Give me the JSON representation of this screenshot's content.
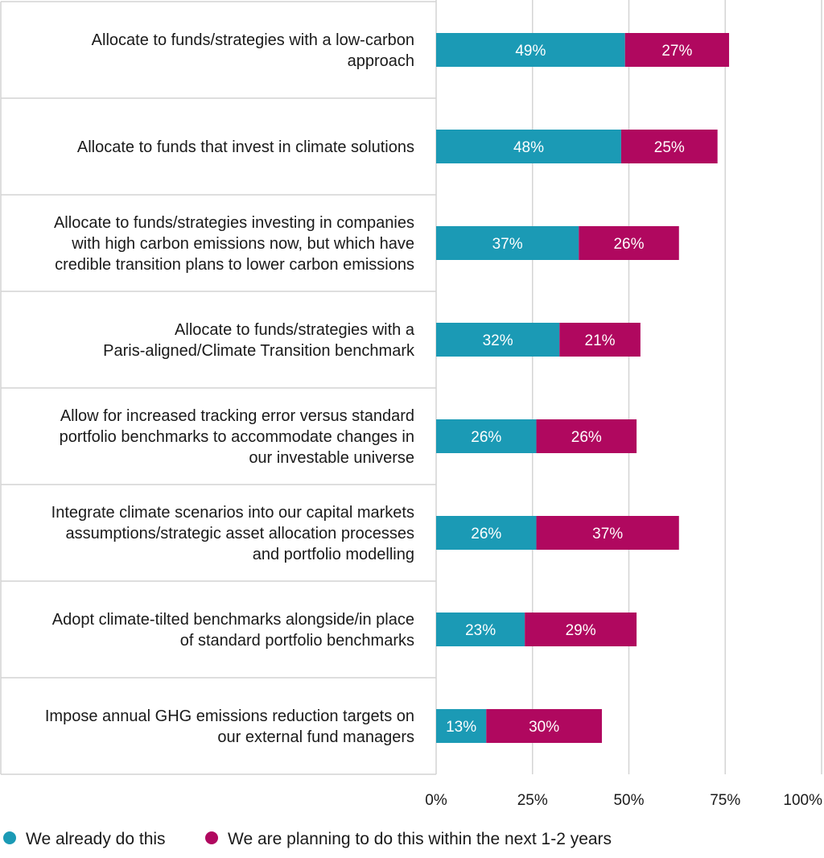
{
  "chart_data": {
    "type": "bar",
    "orientation": "horizontal",
    "stacked": true,
    "categories": [
      [
        "Allocate to funds/strategies with a low-carbon",
        "approach"
      ],
      [
        "Allocate to funds that invest in climate solutions"
      ],
      [
        "Allocate to funds/strategies investing in companies",
        "with high carbon emissions now, but which have",
        "credible transition plans to lower carbon emissions"
      ],
      [
        "Allocate to funds/strategies with a",
        "Paris-aligned/Climate Transition benchmark"
      ],
      [
        "Allow for increased tracking error versus standard",
        "portfolio benchmarks to accommodate changes in",
        "our investable universe"
      ],
      [
        "Integrate climate scenarios into our capital markets",
        "assumptions/strategic asset allocation processes",
        "and portfolio modelling"
      ],
      [
        "Adopt climate-tilted benchmarks alongside/in place",
        "of standard portfolio benchmarks"
      ],
      [
        "Impose annual GHG emissions reduction targets on",
        "our external fund managers"
      ]
    ],
    "series": [
      {
        "name": "We already do this",
        "color": "#1b9ab5",
        "values": [
          49,
          48,
          37,
          32,
          26,
          26,
          23,
          13
        ],
        "labels": [
          "49%",
          "48%",
          "37%",
          "32%",
          "26%",
          "26%",
          "23%",
          "13%"
        ]
      },
      {
        "name": "We are planning to do this within the next 1-2 years",
        "color": "#b0085f",
        "values": [
          27,
          25,
          26,
          21,
          26,
          37,
          29,
          30
        ],
        "labels": [
          "27%",
          "25%",
          "26%",
          "21%",
          "26%",
          "37%",
          "29%",
          "30%"
        ]
      }
    ],
    "xlim": [
      0,
      100
    ],
    "xticks": [
      0,
      25,
      50,
      75,
      100
    ],
    "xtick_labels": [
      "0%",
      "25%",
      "50%",
      "75%",
      "100%"
    ],
    "grid": true,
    "legend": "bottom-left"
  }
}
